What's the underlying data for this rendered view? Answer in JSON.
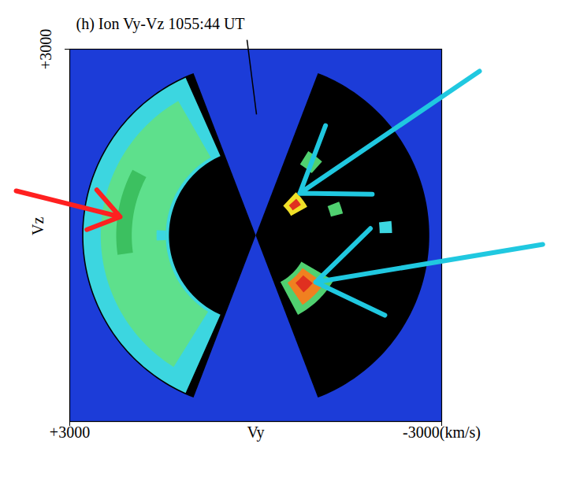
{
  "chart_data": {
    "type": "velocity_distribution",
    "title": "(h) Ion Vy-Vz 1055:44 UT",
    "x_label": "Vy",
    "y_label": "Vz",
    "xlim": [
      3000,
      -3000
    ],
    "ylim": [
      -3000,
      3000
    ],
    "xticks": [
      {
        "value": 3000,
        "label": "+3000"
      },
      {
        "value": -3000,
        "label": "-3000(km/s)"
      }
    ],
    "yticks": [
      {
        "value": 3000,
        "label": "+3000"
      }
    ],
    "color": "#1c3cd8",
    "regions": [
      {
        "speed": [
          0,
          2800
        ],
        "angle": [
          -69,
          69
        ],
        "color": "#000000"
      },
      {
        "speed": [
          0,
          2800
        ],
        "angle": [
          111,
          249
        ],
        "color": "#000000"
      },
      {
        "speed": [
          1400,
          2780
        ],
        "angle": [
          -66,
          66
        ],
        "color": "#3cd6e0"
      },
      {
        "speed": [
          1450,
          2500
        ],
        "angle": [
          -58,
          60
        ],
        "color": "#5ee08c"
      },
      {
        "speed": [
          2000,
          2250
        ],
        "angle": [
          -8,
          28
        ],
        "color": "#3cc060"
      },
      {
        "speed": [
          1450,
          1600
        ],
        "angle": [
          -3,
          3
        ],
        "color": "#3cd6e0"
      },
      {
        "speed": [
          1350,
          1600
        ],
        "angle": [
          122,
          132
        ],
        "color": "#50d070"
      },
      {
        "speed": [
          1250,
          1450
        ],
        "angle": [
          158,
          166
        ],
        "color": "#50d070"
      },
      {
        "speed": [
          650,
          950
        ],
        "angle": [
          133,
          151
        ],
        "color": "#f0e028"
      },
      {
        "speed": [
          720,
          880
        ],
        "angle": [
          138,
          146
        ],
        "color": "#e03020"
      },
      {
        "speed": [
          850,
          1450
        ],
        "angle": [
          210,
          242
        ],
        "color": "#50d070"
      },
      {
        "speed": [
          920,
          1350
        ],
        "angle": [
          215,
          236
        ],
        "color": "#f08020"
      },
      {
        "speed": [
          1000,
          1200
        ],
        "angle": [
          220,
          230
        ],
        "color": "#e03020"
      },
      {
        "speed": [
          2000,
          2200
        ],
        "angle": [
          174,
          179
        ],
        "color": "#3cd6e0"
      }
    ],
    "arrows": [
      {
        "from": [
          3864,
          717
        ],
        "to": [
          2186,
          298
        ],
        "color": "#ff2020"
      },
      {
        "from": [
          -3610,
          2646
        ],
        "to": [
          -712,
          679
        ],
        "color": "#20c8e0"
      },
      {
        "from": [
          -4631,
          -146
        ],
        "to": [
          -966,
          -755
        ],
        "color": "#20c8e0"
      }
    ],
    "pointer": {
      "from": [
        140,
        3150
      ],
      "to": [
        -13,
        1948
      ],
      "color": "#000000"
    }
  }
}
